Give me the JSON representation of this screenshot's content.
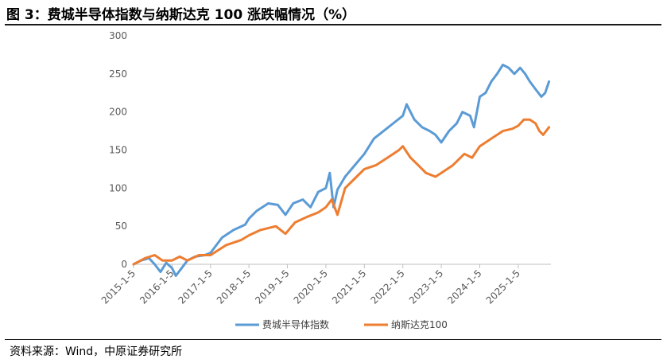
{
  "title": "图 3：费城半导体指数与纳斯达克 100 涨跌幅情况（%）",
  "source": "资料来源：Wind，中原证券研究所",
  "chart_data": {
    "type": "line",
    "title": "图 3：费城半导体指数与纳斯达克 100 涨跌幅情况（%）",
    "xlabel": "",
    "ylabel": "",
    "ylim": [
      0,
      300
    ],
    "yticks": [
      0,
      50,
      100,
      150,
      200,
      250,
      300
    ],
    "ytick_labels": [
      "0",
      "50",
      "100",
      "150",
      "200",
      "250",
      "300"
    ],
    "xlim": [
      2015.0,
      2025.85
    ],
    "xticks": [
      2015,
      2016,
      2017,
      2018,
      2019,
      2020,
      2021,
      2022,
      2023,
      2024,
      2025
    ],
    "xtick_labels": [
      "2015-1-5",
      "2016-1-5",
      "2017-1-5",
      "2018-1-5",
      "2019-1-5",
      "2020-1-5",
      "2021-1-5",
      "2022-1-5",
      "2023-1-5",
      "2024-1-5",
      "2025-1-5"
    ],
    "grid": false,
    "legend": "bottom",
    "series": [
      {
        "name": "费城半导体指数",
        "color": "#5B9BD5",
        "x": [
          2015.0,
          2015.2,
          2015.4,
          2015.55,
          2015.7,
          2015.85,
          2016.0,
          2016.1,
          2016.25,
          2016.4,
          2016.6,
          2016.85,
          2017.0,
          2017.3,
          2017.6,
          2017.9,
          2018.0,
          2018.2,
          2018.5,
          2018.75,
          2018.95,
          2019.15,
          2019.4,
          2019.6,
          2019.8,
          2020.0,
          2020.1,
          2020.2,
          2020.3,
          2020.5,
          2020.75,
          2021.0,
          2021.25,
          2021.5,
          2021.75,
          2022.0,
          2022.1,
          2022.3,
          2022.5,
          2022.7,
          2022.85,
          2023.0,
          2023.2,
          2023.4,
          2023.55,
          2023.75,
          2023.85,
          2024.0,
          2024.15,
          2024.3,
          2024.45,
          2024.6,
          2024.75,
          2024.9,
          2025.05,
          2025.18,
          2025.3,
          2025.45,
          2025.6,
          2025.7,
          2025.8
        ],
        "y": [
          0,
          5,
          8,
          0,
          -10,
          2,
          -5,
          -15,
          -5,
          5,
          10,
          12,
          15,
          35,
          45,
          52,
          60,
          70,
          80,
          78,
          65,
          80,
          85,
          75,
          95,
          100,
          120,
          75,
          98,
          115,
          130,
          145,
          165,
          175,
          185,
          195,
          210,
          190,
          180,
          175,
          170,
          160,
          175,
          185,
          200,
          195,
          180,
          220,
          225,
          240,
          250,
          262,
          258,
          250,
          258,
          250,
          240,
          230,
          220,
          225,
          240
        ]
      },
      {
        "name": "纳斯达克100",
        "color": "#ED7D31",
        "x": [
          2015.0,
          2015.3,
          2015.55,
          2015.75,
          2016.0,
          2016.2,
          2016.4,
          2016.7,
          2017.0,
          2017.4,
          2017.8,
          2018.0,
          2018.3,
          2018.7,
          2018.95,
          2019.2,
          2019.5,
          2019.8,
          2020.0,
          2020.15,
          2020.3,
          2020.5,
          2020.8,
          2021.0,
          2021.3,
          2021.6,
          2021.9,
          2022.0,
          2022.2,
          2022.4,
          2022.6,
          2022.85,
          2023.0,
          2023.3,
          2023.6,
          2023.8,
          2024.0,
          2024.3,
          2024.6,
          2024.85,
          2025.0,
          2025.15,
          2025.3,
          2025.45,
          2025.55,
          2025.65,
          2025.8
        ],
        "y": [
          0,
          8,
          12,
          5,
          5,
          10,
          5,
          12,
          12,
          25,
          32,
          38,
          45,
          50,
          40,
          55,
          62,
          68,
          75,
          85,
          65,
          100,
          115,
          125,
          130,
          140,
          150,
          155,
          140,
          130,
          120,
          115,
          120,
          130,
          145,
          140,
          155,
          165,
          175,
          178,
          182,
          190,
          190,
          185,
          175,
          170,
          180
        ]
      }
    ]
  }
}
